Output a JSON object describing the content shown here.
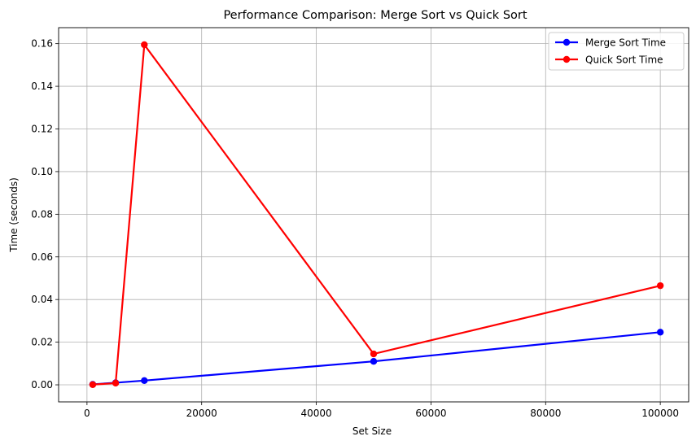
{
  "chart_data": {
    "type": "line",
    "title": "Performance Comparison: Merge Sort vs Quick Sort",
    "xlabel": "Set Size",
    "ylabel": "Time (seconds)",
    "xlim": [
      -4950,
      104950
    ],
    "ylim": [
      -0.008,
      0.1675
    ],
    "xticks": [
      0,
      20000,
      40000,
      60000,
      80000,
      100000
    ],
    "xtick_labels": [
      "0",
      "20000",
      "40000",
      "60000",
      "80000",
      "100000"
    ],
    "yticks": [
      0.0,
      0.02,
      0.04,
      0.06,
      0.08,
      0.1,
      0.12,
      0.14,
      0.16
    ],
    "ytick_labels": [
      "0.00",
      "0.02",
      "0.04",
      "0.06",
      "0.08",
      "0.10",
      "0.12",
      "0.14",
      "0.16"
    ],
    "grid": true,
    "legend_position": "top-right",
    "x": [
      1000,
      5000,
      10000,
      50000,
      100000
    ],
    "series": [
      {
        "name": "Merge Sort Time",
        "color": "#0000ff",
        "marker": "circle",
        "values": [
          0.0002,
          0.001,
          0.002,
          0.011,
          0.0247
        ]
      },
      {
        "name": "Quick Sort Time",
        "color": "#ff0000",
        "marker": "circle",
        "values": [
          0.0001,
          0.0008,
          0.1595,
          0.0145,
          0.0465
        ]
      }
    ]
  }
}
